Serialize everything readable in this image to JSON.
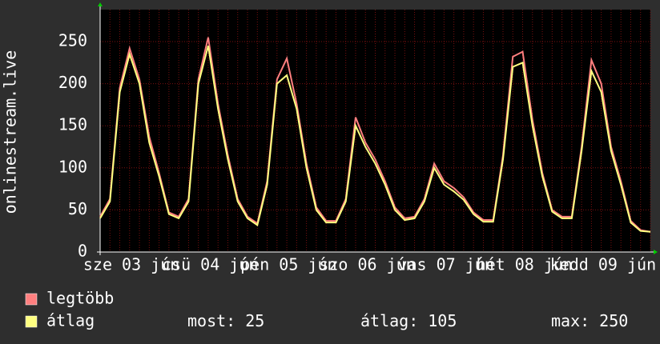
{
  "chart_data": {
    "type": "line",
    "y_label": "onlinestream.live",
    "categories": [
      null,
      null,
      null,
      null,
      "sze 03 jún",
      null,
      null,
      null,
      null,
      null,
      null,
      null,
      "csü 04 jún",
      null,
      null,
      null,
      null,
      null,
      null,
      null,
      "pén 05 jún",
      null,
      null,
      null,
      null,
      null,
      null,
      null,
      "szo 06 jún",
      null,
      null,
      null,
      null,
      null,
      null,
      null,
      "vas 07 jún",
      null,
      null,
      null,
      null,
      null,
      null,
      null,
      "hét 08 jún",
      null,
      null,
      null,
      null,
      null,
      null,
      null,
      "kedd 09 jún",
      null,
      null,
      null,
      null
    ],
    "series": [
      {
        "name": "legtöbb",
        "color": "#ff7f7f",
        "values": [
          42,
          63,
          195,
          242,
          205,
          137,
          94,
          47,
          42,
          63,
          205,
          255,
          176,
          115,
          63,
          42,
          34,
          84,
          205,
          230,
          176,
          105,
          53,
          37,
          37,
          63,
          160,
          130,
          110,
          84,
          53,
          40,
          42,
          63,
          105,
          84,
          76,
          65,
          47,
          38,
          38,
          115,
          232,
          238,
          157,
          94,
          50,
          42,
          42,
          125,
          228,
          200,
          125,
          84,
          37,
          26,
          24
        ]
      },
      {
        "name": "átlag",
        "color": "#ffff80",
        "values": [
          40,
          60,
          190,
          235,
          200,
          130,
          90,
          45,
          40,
          60,
          200,
          245,
          170,
          110,
          60,
          40,
          32,
          80,
          200,
          210,
          170,
          100,
          50,
          35,
          35,
          60,
          150,
          125,
          105,
          80,
          50,
          38,
          40,
          60,
          100,
          80,
          72,
          62,
          45,
          36,
          36,
          110,
          220,
          225,
          150,
          90,
          48,
          40,
          40,
          120,
          215,
          190,
          120,
          80,
          35,
          25,
          24
        ]
      }
    ],
    "ylim": [
      0,
      288
    ],
    "yticks": [
      0,
      50,
      100,
      150,
      200,
      250
    ],
    "grid": true,
    "stats": [
      {
        "label": "most:",
        "value": 25
      },
      {
        "label": "átlag:",
        "value": 105
      },
      {
        "label": "max:",
        "value": 250
      }
    ]
  }
}
